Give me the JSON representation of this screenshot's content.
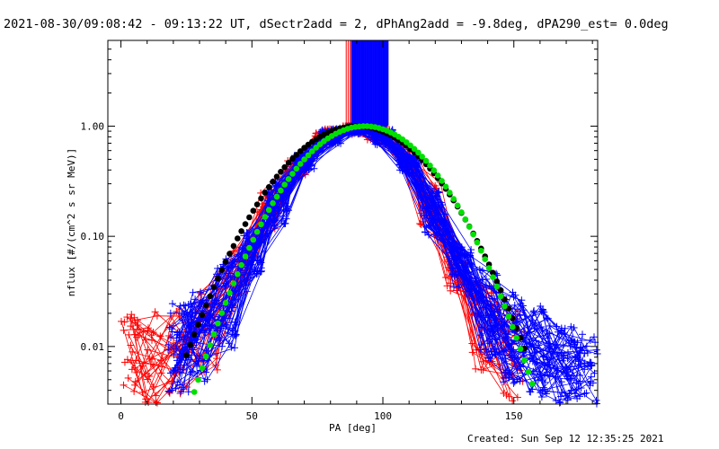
{
  "chart_data": {
    "type": "line",
    "title": "2021-08-30/09:08:42 - 09:13:22 UT, dSectr2add = 2, dPhAng2add = -9.8deg, dPA290_est=  0.0deg",
    "xlabel": "PA [deg]",
    "ylabel": "nflux [#/(cm^2 s sr MeV)]",
    "footer": "Created: Sun Sep 12 12:35:25 2021",
    "x_scale": "linear",
    "y_scale": "log",
    "xlim": [
      -5,
      182
    ],
    "ylim": [
      0.003,
      6
    ],
    "x_ticks": [
      0,
      50,
      100,
      150
    ],
    "y_ticks": [
      0.01,
      0.1,
      1.0
    ],
    "x_tick_labels": [
      "0",
      "50",
      "100",
      "150"
    ],
    "y_tick_labels": [
      "0.01",
      "0.10",
      "1.00"
    ],
    "colors": {
      "red_series": "#ff0000",
      "blue_series": "#0000ff",
      "fit_black": "#000000",
      "fit_green": "#00e000"
    },
    "series": [
      {
        "color": "red",
        "marker": "plus",
        "count": 30,
        "x": [
          3,
          12,
          22,
          33,
          45,
          56,
          67,
          78,
          88,
          98,
          108,
          118,
          128,
          138,
          150
        ],
        "y": [
          0.009,
          0.008,
          0.009,
          0.015,
          0.05,
          0.17,
          0.42,
          0.8,
          0.99,
          0.85,
          0.55,
          0.2,
          0.05,
          0.015,
          0.008
        ]
      },
      {
        "color": "blue",
        "marker": "plus",
        "count": 60,
        "x": [
          22,
          30,
          40,
          50,
          60,
          70,
          80,
          90,
          100,
          110,
          120,
          130,
          140,
          150,
          160,
          170,
          178
        ],
        "y": [
          0.01,
          0.012,
          0.025,
          0.07,
          0.2,
          0.47,
          0.82,
          1.0,
          0.8,
          0.45,
          0.16,
          0.05,
          0.02,
          0.012,
          0.009,
          0.006,
          0.005
        ]
      },
      {
        "color": "black",
        "marker": "dot",
        "fit": "gaussian",
        "center": 90,
        "sigma": 21
      },
      {
        "color": "green",
        "marker": "dot",
        "fit": "gaussian",
        "center": 93,
        "sigma": 19.5
      }
    ]
  }
}
